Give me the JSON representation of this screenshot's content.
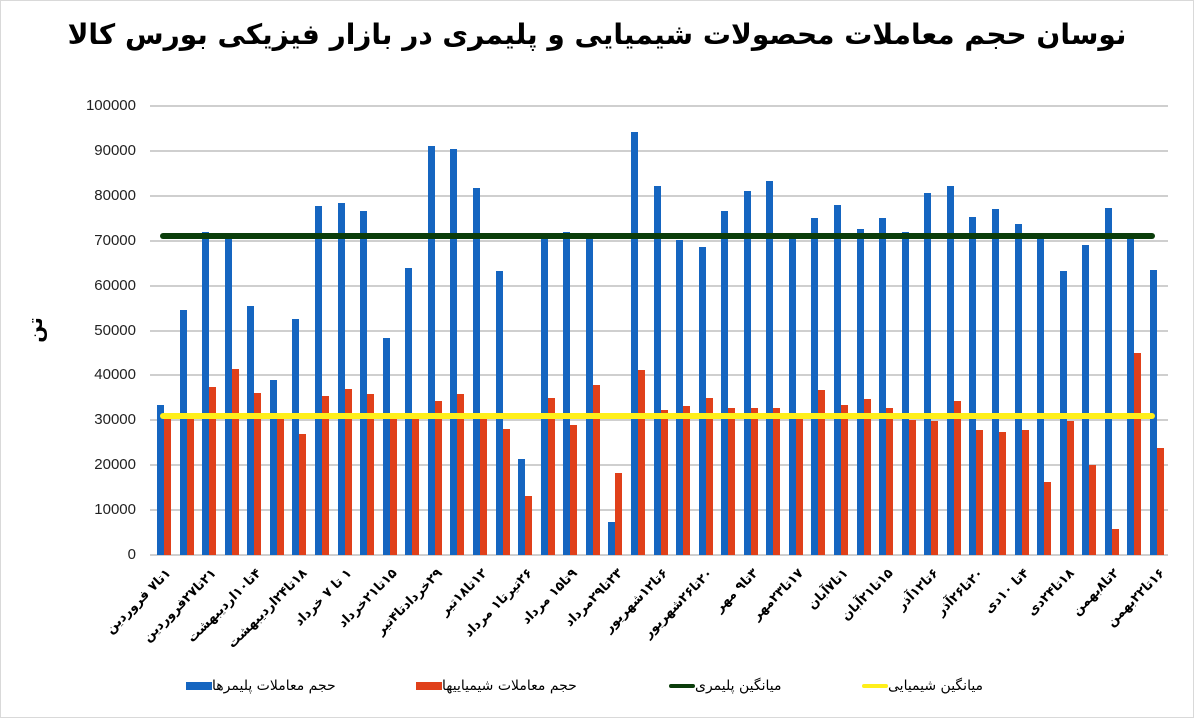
{
  "chart_data": {
    "type": "bar",
    "title": "نوسان حجم معاملات محصولات شیمیایی و پلیمری در بازار فیزیکی بورس کالا",
    "xlabel": "",
    "ylabel": "تن",
    "ylim": [
      0,
      100000
    ],
    "yticks": [
      0,
      10000,
      20000,
      30000,
      40000,
      50000,
      60000,
      70000,
      80000,
      90000,
      100000
    ],
    "grid": true,
    "legend_position": "bottom",
    "x_tick_labels": [
      "۱تا۷ فروردین",
      "۲۱تا۲۷فروردین",
      "۴تا۱۰اردیبهشت",
      "۱۸تا۲۴اردیبهشت",
      "۱ تا ۷ خرداد",
      "۱۵تا۲۱خرداد",
      "۲۹خردادتا۴تیر",
      "۱۲تا۱۸تیر",
      "۲۶تیرتا۱ مرداد",
      "۹تا۱۵ مرداد",
      "۲۳تا۲۹مرداد",
      "۶تا۱۲شهریور",
      "۲۰تا۲۶شهریور",
      "۳تا۹ مهر",
      "۱۷تا۲۳مهر",
      "۱تا۷آبان",
      "۱۵تا۲۱آبان",
      "۶تا۱۲آذر",
      "۲۰تا۲۶آذر",
      "۴تا ۱۰دی",
      "۱۸تا۲۴دی",
      "۲تا۸بهمن",
      "۱۶تا۲۲بهمن"
    ],
    "num_categories": 45,
    "series": [
      {
        "name": "حجم معاملات پلیمرها",
        "type": "bar",
        "color": "#1565c0",
        "values": [
          33500,
          54500,
          72000,
          70500,
          55500,
          39000,
          52500,
          77800,
          78500,
          76700,
          48300,
          64000,
          91200,
          90500,
          81800,
          63300,
          21300,
          70500,
          72000,
          70500,
          7400,
          94200,
          82200,
          70200,
          68500,
          76700,
          81000,
          83200,
          71000,
          75000,
          78000,
          72500,
          75000,
          72000,
          80600,
          82200,
          75200,
          77000,
          73700,
          71000,
          63300,
          69000,
          77300,
          71000,
          63500
        ]
      },
      {
        "name": "حجم معاملات شیمیاییها",
        "type": "bar",
        "color": "#e0401a",
        "values": [
          31000,
          30500,
          37500,
          41500,
          36000,
          30500,
          27000,
          35500,
          37000,
          35800,
          30500,
          30500,
          34200,
          35800,
          30200,
          28000,
          13200,
          35000,
          29000,
          37800,
          18200,
          41200,
          32400,
          33200,
          35000,
          32800,
          32800,
          32800,
          30500,
          36800,
          33500,
          34800,
          32800,
          30000,
          29800,
          34200,
          27800,
          27500,
          27800,
          16200,
          29800,
          20000,
          5800,
          45000,
          23800
        ]
      },
      {
        "name": "میانگین پلیمری",
        "type": "line",
        "color": "#0b3d0b",
        "value": 71000
      },
      {
        "name": "میانگین شیمیایی",
        "type": "line",
        "color": "#ffef1a",
        "value": 31000
      }
    ]
  },
  "legend": [
    {
      "label": "حجم معاملات پلیمرها",
      "color": "#1565c0"
    },
    {
      "label": "حجم معاملات شیمیاییها",
      "color": "#e0401a"
    },
    {
      "label": "میانگین پلیمری",
      "color": "#0b3d0b"
    },
    {
      "label": "میانگین شیمیایی",
      "color": "#ffef1a"
    }
  ]
}
